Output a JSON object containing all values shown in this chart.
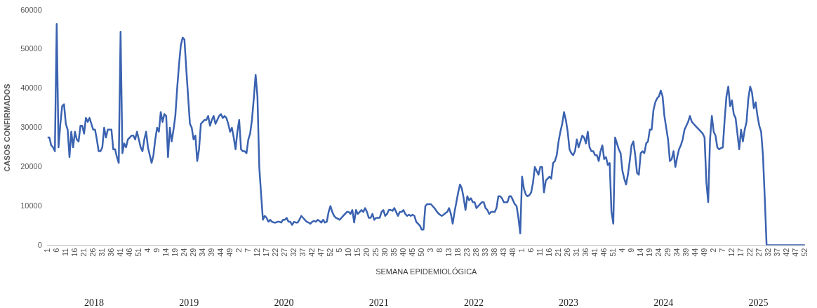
{
  "chart_data": {
    "type": "line",
    "xlabel": "SEMANA EPIDEMIOLÓGICA",
    "ylabel": "CASOS CONFIRMADOS",
    "categories": [
      "1",
      null,
      null,
      null,
      null,
      "6",
      null,
      null,
      null,
      null,
      "11",
      null,
      null,
      null,
      null,
      "16",
      null,
      null,
      null,
      null,
      "21",
      null,
      null,
      null,
      null,
      "26",
      null,
      null,
      null,
      null,
      "31",
      null,
      null,
      null,
      null,
      "36",
      null,
      null,
      null,
      null,
      "41",
      null,
      null,
      null,
      null,
      "46",
      null,
      null,
      null,
      null,
      "51",
      null,
      null,
      null,
      null,
      "4",
      null,
      null,
      null,
      null,
      "9",
      null,
      null,
      null,
      null,
      "14",
      null,
      null,
      null,
      null,
      "19",
      null,
      null,
      null,
      null,
      "24",
      null,
      null,
      null,
      null,
      "29",
      null,
      null,
      null,
      null,
      "34",
      null,
      null,
      null,
      null,
      "39",
      null,
      null,
      null,
      null,
      "44",
      null,
      null,
      null,
      null,
      "49",
      null,
      null,
      null,
      null,
      "2",
      null,
      null,
      null,
      null,
      "7",
      null,
      null,
      null,
      null,
      "12",
      null,
      null,
      null,
      null,
      "17",
      null,
      null,
      null,
      null,
      "22",
      null,
      null,
      null,
      null,
      "27",
      null,
      null,
      null,
      null,
      "32",
      null,
      null,
      null,
      null,
      "37",
      null,
      null,
      null,
      null,
      "42",
      null,
      null,
      null,
      null,
      "47",
      null,
      null,
      null,
      null,
      "52",
      null,
      null,
      null,
      null,
      "5",
      null,
      null,
      null,
      null,
      "10",
      null,
      null,
      null,
      null,
      "15",
      null,
      null,
      null,
      null,
      "20",
      null,
      null,
      null,
      null,
      "25",
      null,
      null,
      null,
      null,
      "30",
      null,
      null,
      null,
      null,
      "35",
      null,
      null,
      null,
      null,
      "40",
      null,
      null,
      null,
      null,
      "45",
      null,
      null,
      null,
      null,
      "50",
      null,
      null,
      null,
      null,
      "3",
      null,
      null,
      null,
      null,
      "8",
      null,
      null,
      null,
      null,
      "13",
      null,
      null,
      null,
      null,
      "18",
      null,
      null,
      null,
      null,
      "23",
      null,
      null,
      null,
      null,
      "28",
      null,
      null,
      null,
      null,
      "33",
      null,
      null,
      null,
      null,
      "38",
      null,
      null,
      null,
      null,
      "43",
      null,
      null,
      null,
      null,
      "48",
      null,
      null,
      null,
      null,
      "1",
      null,
      null,
      null,
      null,
      "6",
      null,
      null,
      null,
      null,
      "11",
      null,
      null,
      null,
      null,
      "16",
      null,
      null,
      null,
      null,
      "21",
      null,
      null,
      null,
      null,
      "26",
      null,
      null,
      null,
      null,
      "31",
      null,
      null,
      null,
      null,
      "36",
      null,
      null,
      null,
      null,
      "41",
      null,
      null,
      null,
      null,
      "46",
      null,
      null,
      null,
      null,
      "51",
      null,
      null,
      null,
      null,
      "4",
      null,
      null,
      null,
      null,
      "9",
      null,
      null,
      null,
      null,
      "14",
      null,
      null,
      null,
      null,
      "19",
      null,
      null,
      null,
      null,
      "24",
      null,
      null,
      null,
      null,
      "29",
      null,
      null,
      null,
      null,
      "34",
      null,
      null,
      null,
      null,
      "39",
      null,
      null,
      null,
      null,
      "44",
      null,
      null,
      null,
      null,
      "49",
      null,
      null,
      null,
      null,
      "2",
      null,
      null,
      null,
      null,
      "7",
      null,
      null,
      null,
      null,
      "12",
      null,
      null,
      null,
      null,
      "17",
      null,
      null,
      null,
      null,
      "22",
      null,
      null,
      null,
      null,
      "27",
      null,
      null,
      null,
      null,
      "32",
      null,
      null,
      null,
      null,
      "37",
      null,
      null,
      null,
      null,
      "42",
      null,
      null,
      null,
      null,
      "47",
      null,
      null,
      null,
      null,
      "52"
    ],
    "series": [
      {
        "color": "#3a62b0",
        "values": [
          27500,
          27500,
          25500,
          25000,
          24000,
          56500,
          25000,
          31000,
          35500,
          36000,
          31000,
          29500,
          22500,
          29000,
          25000,
          29000,
          27000,
          26500,
          30500,
          30500,
          28500,
          32500,
          31500,
          32500,
          31000,
          29500,
          29500,
          27000,
          24000,
          24000,
          25000,
          30000,
          27500,
          29500,
          29500,
          29500,
          24500,
          24500,
          22500,
          21000,
          54500,
          23500,
          26000,
          25000,
          27000,
          27500,
          28000,
          28000,
          27000,
          29000,
          27000,
          25000,
          24000,
          27000,
          29000,
          25000,
          23000,
          21000,
          23000,
          27000,
          30000,
          29000,
          34000,
          31500,
          33500,
          33000,
          22500,
          30000,
          26500,
          29500,
          33000,
          40000,
          46000,
          51000,
          53000,
          52500,
          45000,
          38000,
          31000,
          30000,
          27000,
          28000,
          21500,
          24500,
          31000,
          31500,
          32000,
          32000,
          33000,
          30500,
          32000,
          33000,
          31000,
          32000,
          33000,
          33500,
          32500,
          33000,
          32500,
          31000,
          29000,
          30000,
          27500,
          24500,
          29000,
          32000,
          24500,
          24000,
          24000,
          23500,
          27000,
          28500,
          32000,
          37500,
          43500,
          38000,
          20000,
          13000,
          6500,
          7500,
          7000,
          6000,
          6500,
          6000,
          5800,
          5800,
          6000,
          6000,
          5800,
          6500,
          6500,
          7000,
          6000,
          6000,
          5200,
          6000,
          5800,
          5800,
          6500,
          7500,
          7000,
          6500,
          6000,
          5800,
          5500,
          6000,
          6200,
          6000,
          6500,
          6200,
          5800,
          6500,
          5800,
          6000,
          8500,
          10000,
          8500,
          7500,
          7000,
          6800,
          6500,
          7000,
          7500,
          8000,
          8500,
          8500,
          8000,
          9000,
          5800,
          9000,
          8000,
          8500,
          9000,
          8500,
          9500,
          8500,
          7000,
          7000,
          8000,
          6500,
          7000,
          7000,
          7000,
          8500,
          9000,
          7500,
          8000,
          9000,
          9000,
          8800,
          9500,
          8500,
          7500,
          8500,
          8500,
          9000,
          8000,
          7500,
          7800,
          7500,
          7800,
          7500,
          6000,
          5500,
          5000,
          4000,
          4000,
          10000,
          10500,
          10500,
          10500,
          10000,
          9500,
          8800,
          8200,
          7800,
          7500,
          7800,
          8200,
          8500,
          9500,
          8000,
          5500,
          8500,
          11000,
          13500,
          15500,
          14500,
          12000,
          9000,
          12500,
          11500,
          12000,
          11000,
          11000,
          9500,
          10000,
          10500,
          11000,
          11000,
          9500,
          9000,
          8000,
          8500,
          8500,
          8500,
          9500,
          12500,
          12500,
          12000,
          11000,
          11000,
          11000,
          12500,
          12500,
          11500,
          10500,
          10000,
          7000,
          3000,
          17500,
          14500,
          13000,
          12500,
          12800,
          13500,
          16000,
          20000,
          19000,
          18000,
          20000,
          20000,
          13500,
          16500,
          17000,
          17500,
          17000,
          21000,
          21500,
          23000,
          26500,
          29000,
          31000,
          34000,
          32000,
          29000,
          24500,
          23500,
          23000,
          24000,
          27000,
          25000,
          26500,
          28000,
          27500,
          26000,
          29000,
          25000,
          24000,
          24000,
          23000,
          23000,
          21500,
          24000,
          25500,
          22000,
          22500,
          20500,
          21000,
          8500,
          5500,
          27500,
          26000,
          24500,
          23500,
          19000,
          17000,
          15500,
          18000,
          21500,
          25500,
          26500,
          23000,
          18500,
          18000,
          23500,
          24000,
          23500,
          26000,
          26500,
          29500,
          29500,
          34500,
          36500,
          37500,
          38000,
          39500,
          38000,
          33000,
          30000,
          27000,
          21500,
          22000,
          24000,
          20000,
          22500,
          24500,
          25500,
          27000,
          29500,
          30500,
          31500,
          33000,
          31500,
          31000,
          30500,
          30000,
          29500,
          29000,
          28500,
          27500,
          16000,
          11000,
          27000,
          33000,
          29000,
          28000,
          25000,
          24500,
          24800,
          25000,
          32000,
          38000,
          40500,
          35500,
          37000,
          33500,
          32500,
          28500,
          24500,
          29500,
          26500,
          29500,
          31500,
          37500,
          40500,
          39000,
          35000,
          36500,
          33000,
          30500,
          29000,
          23000,
          12000,
          0,
          0,
          0,
          0,
          0,
          0,
          0,
          0,
          0,
          0,
          0,
          0,
          0,
          0,
          0,
          0,
          0,
          0,
          0,
          0,
          0,
          0
        ]
      }
    ],
    "ylim": [
      0,
      60000
    ],
    "yticks": [
      0,
      10000,
      20000,
      30000,
      40000,
      50000,
      60000
    ],
    "marker": "none",
    "annotations": [
      "2018",
      "2019",
      "2020",
      "2021",
      "2022",
      "2023",
      "2024",
      "2025"
    ]
  }
}
